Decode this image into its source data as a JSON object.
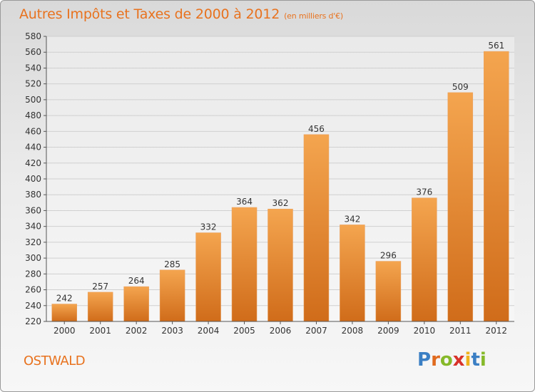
{
  "title": "Autres Impôts et Taxes de 2000 à 2012",
  "subtitle": "(en milliers d'€)",
  "city": "OSTWALD",
  "logo": {
    "letters": [
      "P",
      "r",
      "o",
      "x",
      "i",
      "t",
      "i"
    ],
    "colors": [
      "#3b7fc4",
      "#e06a1e",
      "#86b92a",
      "#d8322a",
      "#f0b21c",
      "#3b7fc4",
      "#86b92a"
    ]
  },
  "colors": {
    "bar_top": "#f4a54f",
    "bar_bottom": "#d06c1a",
    "accent": "#e8721e",
    "grid": "#d0d0d0"
  },
  "chart_data": {
    "type": "bar",
    "title": "Autres Impôts et Taxes de 2000 à 2012",
    "subtitle": "(en milliers d'€)",
    "categories": [
      "2000",
      "2001",
      "2002",
      "2003",
      "2004",
      "2005",
      "2006",
      "2007",
      "2008",
      "2009",
      "2010",
      "2011",
      "2012"
    ],
    "values": [
      242,
      257,
      264,
      285,
      332,
      364,
      362,
      456,
      342,
      296,
      376,
      509,
      561
    ],
    "ylim": [
      220,
      580
    ],
    "yticks": [
      220,
      240,
      260,
      280,
      300,
      320,
      340,
      360,
      380,
      400,
      420,
      440,
      460,
      480,
      500,
      520,
      540,
      560,
      580
    ],
    "grid": "horizontal",
    "xlabel": "",
    "ylabel": ""
  }
}
